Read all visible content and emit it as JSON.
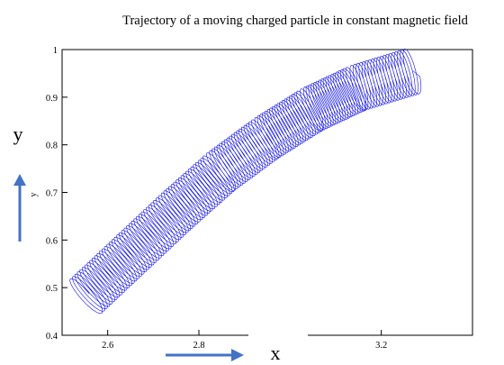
{
  "chart_data": {
    "type": "line",
    "title": "Trajectory of a moving charged particle in constant magnetic field",
    "xlabel": "x",
    "ylabel": "y",
    "ylabel_small": "y",
    "xlim": [
      2.5,
      3.4
    ],
    "ylim": [
      0.4,
      1.0
    ],
    "x_ticks": [
      2.6,
      2.8,
      3.0,
      3.2
    ],
    "x_tick_labels": [
      "2.6",
      "2.8",
      "",
      "3.2"
    ],
    "y_ticks": [
      0.4,
      0.5,
      0.6,
      0.7,
      0.8,
      0.9,
      1.0
    ],
    "y_tick_labels": [
      "0.4",
      "0.5",
      "0.6",
      "0.7",
      "0.8",
      "0.9",
      "1"
    ],
    "grid": false,
    "series": [
      {
        "color": "#1010e0",
        "description_points": "helical trajectory along a curved band from lower-left to upper-right",
        "guiding_center_path": [
          {
            "x": 2.55,
            "y": 0.48
          },
          {
            "x": 2.65,
            "y": 0.57
          },
          {
            "x": 2.75,
            "y": 0.66
          },
          {
            "x": 2.85,
            "y": 0.745
          },
          {
            "x": 2.95,
            "y": 0.815
          },
          {
            "x": 3.05,
            "y": 0.875
          },
          {
            "x": 3.15,
            "y": 0.92
          },
          {
            "x": 3.27,
            "y": 0.955
          }
        ],
        "gyration_radius": 0.05,
        "loops": 130
      }
    ],
    "colors": {
      "trajectory": "#1010e0",
      "arrows": "#4472c4",
      "frame": "#000000"
    }
  }
}
